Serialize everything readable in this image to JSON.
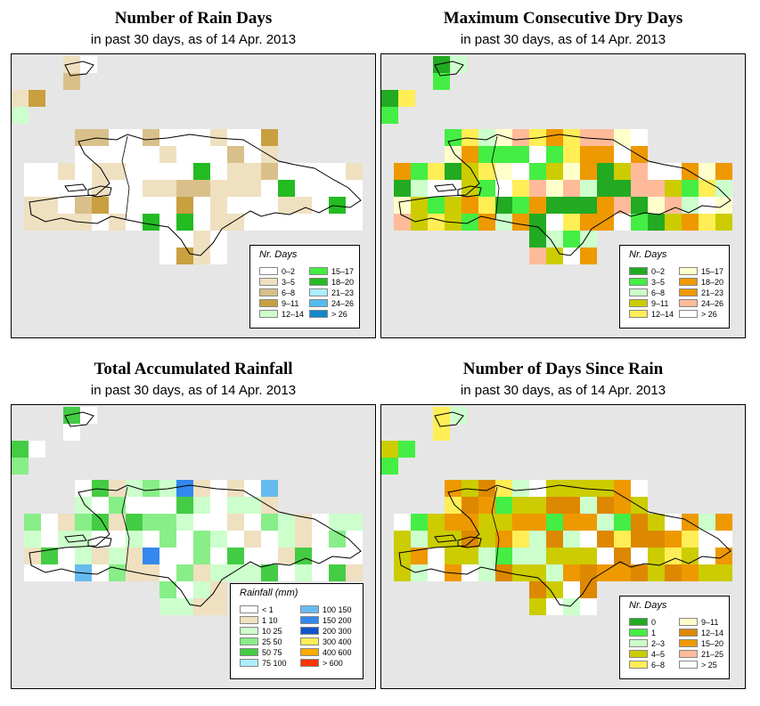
{
  "panels": [
    {
      "id": "rain-days",
      "title": "Number of Rain Days",
      "subtitle": "in past 30 days, as of  14 Apr. 2013",
      "legend_title": "Nr. Days",
      "legend": [
        {
          "label": "0–2",
          "color": "#ffffff"
        },
        {
          "label": "3–5",
          "color": "#efe0c0"
        },
        {
          "label": "6–8",
          "color": "#d9c08a"
        },
        {
          "label": "9–11",
          "color": "#c8a040"
        },
        {
          "label": "12–14",
          "color": "#ccffcc"
        },
        {
          "label": "15–17",
          "color": "#44ee44"
        },
        {
          "label": "18–20",
          "color": "#22bb22"
        },
        {
          "label": "21–23",
          "color": "#aaeeff"
        },
        {
          "label": "24–26",
          "color": "#55bbee"
        },
        {
          "label": "> 26",
          "color": "#1188cc"
        }
      ]
    },
    {
      "id": "max-dry-days",
      "title": "Maximum Consecutive Dry Days",
      "subtitle": "in past 30 days, as of  14 Apr. 2013",
      "legend_title": "Nr. Days",
      "legend": [
        {
          "label": "0–2",
          "color": "#22aa22"
        },
        {
          "label": "3–5",
          "color": "#44ee44"
        },
        {
          "label": "6–8",
          "color": "#ccffcc"
        },
        {
          "label": "9–11",
          "color": "#cccc00"
        },
        {
          "label": "12–14",
          "color": "#ffee55"
        },
        {
          "label": "15–17",
          "color": "#ffffcc"
        },
        {
          "label": "18–20",
          "color": "#ee9900"
        },
        {
          "label": "21–23",
          "color": "#ee9900"
        },
        {
          "label": "24–26",
          "color": "#ffbb99"
        },
        {
          "label": "> 26",
          "color": "#ffffff"
        }
      ]
    },
    {
      "id": "total-rainfall",
      "title": "Total Accumulated Rainfall",
      "subtitle": "in past 30 days, as of  14 Apr. 2013",
      "legend_title": "Rainfall (mm)",
      "legend": [
        {
          "label": "< 1",
          "color": "#ffffff"
        },
        {
          "label": "1   10",
          "color": "#efe0c0"
        },
        {
          "label": "10   25",
          "color": "#ccffcc"
        },
        {
          "label": "25   50",
          "color": "#88ee88"
        },
        {
          "label": "50   75",
          "color": "#44cc44"
        },
        {
          "label": "75  100",
          "color": "#aaeeff"
        },
        {
          "label": "100  150",
          "color": "#66bbee"
        },
        {
          "label": "150  200",
          "color": "#3388ee"
        },
        {
          "label": "200  300",
          "color": "#1155cc"
        },
        {
          "label": "300  400",
          "color": "#ffee55"
        },
        {
          "label": "400  600",
          "color": "#ffaa00"
        },
        {
          "label": "> 600",
          "color": "#ff3300"
        }
      ]
    },
    {
      "id": "days-since-rain",
      "title": "Number of Days Since Rain",
      "subtitle": "in past 30 days, as of  14 Apr. 2013",
      "legend_title": "Nr. Days",
      "legend": [
        {
          "label": "0",
          "color": "#22aa22"
        },
        {
          "label": "1",
          "color": "#44ee44"
        },
        {
          "label": "2–3",
          "color": "#ccffcc"
        },
        {
          "label": "4–5",
          "color": "#cccc00"
        },
        {
          "label": "6–8",
          "color": "#ffee55"
        },
        {
          "label": "9–11",
          "color": "#ffffcc"
        },
        {
          "label": "12–14",
          "color": "#dd8800"
        },
        {
          "label": "15–20",
          "color": "#ee9900"
        },
        {
          "label": "21–25",
          "color": "#ffbb99"
        },
        {
          "label": "> 25",
          "color": "#ffffff"
        }
      ]
    }
  ]
}
